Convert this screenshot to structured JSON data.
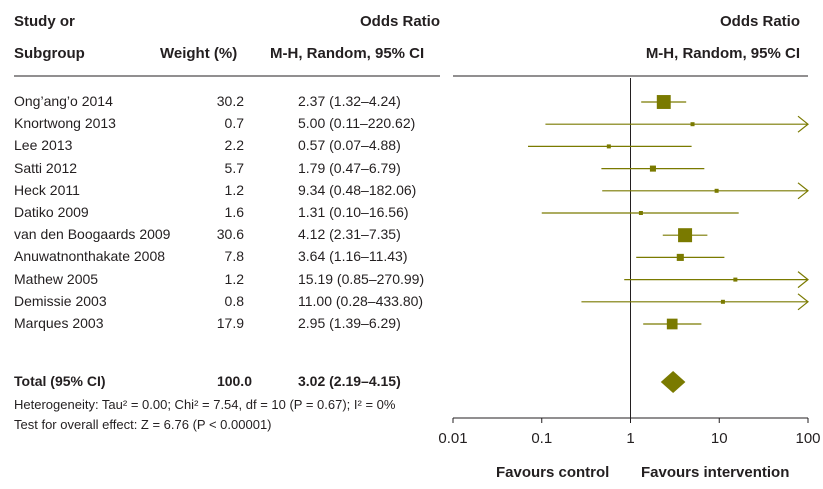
{
  "headers": {
    "study_line1": "Study or",
    "study_line2": "Subgroup",
    "weight": "Weight (%)",
    "or_line1": "Odds Ratio",
    "or_line2": "M-H, Random, 95% CI",
    "plot_line1": "Odds Ratio",
    "plot_line2": "M-H, Random, 95% CI"
  },
  "chart_data": {
    "type": "forest",
    "x_scale": "log",
    "xlim": [
      0.01,
      100
    ],
    "ticks": [
      0.01,
      0.1,
      1,
      10,
      100
    ],
    "tick_labels": [
      "0.01",
      "0.1",
      "1",
      "10",
      "100"
    ],
    "left_label": "Favours control",
    "right_label": "Favours intervention",
    "studies": [
      {
        "name": "Ong’ang’o 2014",
        "weight": "30.2",
        "ci_text": "2.37 (1.32–4.24)",
        "or": 2.37,
        "lo": 1.32,
        "hi": 4.24
      },
      {
        "name": "Knortwong 2013",
        "weight": "0.7",
        "ci_text": "5.00 (0.11–220.62)",
        "or": 5.0,
        "lo": 0.11,
        "hi": 220.62
      },
      {
        "name": "Lee 2013",
        "weight": "2.2",
        "ci_text": "0.57 (0.07–4.88)",
        "or": 0.57,
        "lo": 0.07,
        "hi": 4.88
      },
      {
        "name": "Satti 2012",
        "weight": "5.7",
        "ci_text": "1.79 (0.47–6.79)",
        "or": 1.79,
        "lo": 0.47,
        "hi": 6.79
      },
      {
        "name": "Heck 2011",
        "weight": "1.2",
        "ci_text": "9.34 (0.48–182.06)",
        "or": 9.34,
        "lo": 0.48,
        "hi": 182.06
      },
      {
        "name": "Datiko 2009",
        "weight": "1.6",
        "ci_text": "1.31 (0.10–16.56)",
        "or": 1.31,
        "lo": 0.1,
        "hi": 16.56
      },
      {
        "name": "van den Boogaards 2009",
        "weight": "30.6",
        "ci_text": "4.12 (2.31–7.35)",
        "or": 4.12,
        "lo": 2.31,
        "hi": 7.35
      },
      {
        "name": "Anuwatnonthakate 2008",
        "weight": "7.8",
        "ci_text": "3.64 (1.16–11.43)",
        "or": 3.64,
        "lo": 1.16,
        "hi": 11.43
      },
      {
        "name": "Mathew 2005",
        "weight": "1.2",
        "ci_text": "15.19 (0.85–270.99)",
        "or": 15.19,
        "lo": 0.85,
        "hi": 270.99
      },
      {
        "name": "Demissie 2003",
        "weight": "0.8",
        "ci_text": "11.00 (0.28–433.80)",
        "or": 11.0,
        "lo": 0.28,
        "hi": 433.8
      },
      {
        "name": "Marques 2003",
        "weight": "17.9",
        "ci_text": "2.95 (1.39–6.29)",
        "or": 2.95,
        "lo": 1.39,
        "hi": 6.29
      }
    ],
    "total": {
      "name": "Total (95% CI)",
      "weight": "100.0",
      "ci_text": "3.02 (2.19–4.15)",
      "or": 3.02,
      "lo": 2.19,
      "hi": 4.15
    },
    "heterogeneity": "Heterogeneity: Tau² = 0.00; Chi² = 7.54, df = 10 (P = 0.67); I² = 0%",
    "overall_effect": "Test for overall effect: Z = 6.76 (P < 0.00001)",
    "color": "#7a7a00"
  }
}
